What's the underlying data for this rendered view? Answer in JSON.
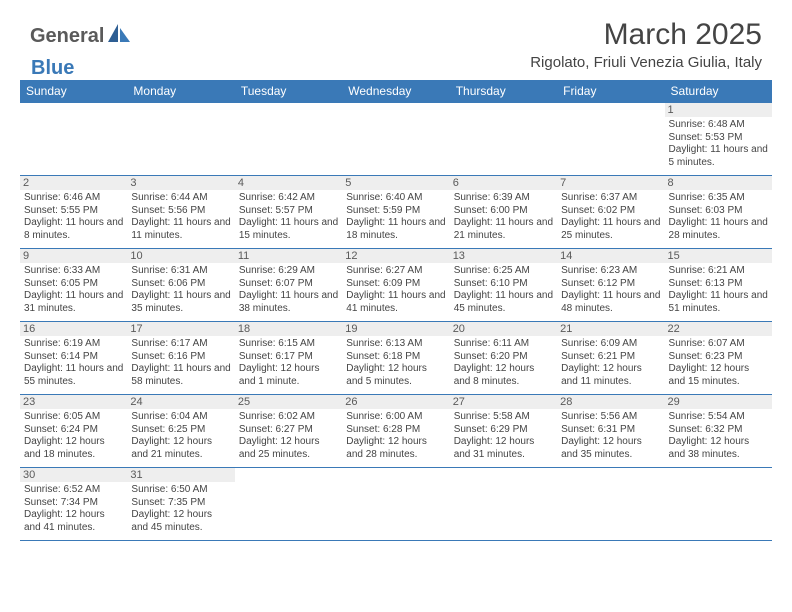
{
  "brand": {
    "part1": "General",
    "part2": "Blue"
  },
  "title": "March 2025",
  "location": "Rigolato, Friuli Venezia Giulia, Italy",
  "calendar": {
    "header_bg": "#3a79b7",
    "header_fg": "#ffffff",
    "border_color": "#3a79b7",
    "daynum_bg": "#eeeeee",
    "columns": [
      "Sunday",
      "Monday",
      "Tuesday",
      "Wednesday",
      "Thursday",
      "Friday",
      "Saturday"
    ],
    "weeks": [
      [
        null,
        null,
        null,
        null,
        null,
        null,
        {
          "n": "1",
          "sunrise": "Sunrise: 6:48 AM",
          "sunset": "Sunset: 5:53 PM",
          "daylight": "Daylight: 11 hours and 5 minutes."
        }
      ],
      [
        {
          "n": "2",
          "sunrise": "Sunrise: 6:46 AM",
          "sunset": "Sunset: 5:55 PM",
          "daylight": "Daylight: 11 hours and 8 minutes."
        },
        {
          "n": "3",
          "sunrise": "Sunrise: 6:44 AM",
          "sunset": "Sunset: 5:56 PM",
          "daylight": "Daylight: 11 hours and 11 minutes."
        },
        {
          "n": "4",
          "sunrise": "Sunrise: 6:42 AM",
          "sunset": "Sunset: 5:57 PM",
          "daylight": "Daylight: 11 hours and 15 minutes."
        },
        {
          "n": "5",
          "sunrise": "Sunrise: 6:40 AM",
          "sunset": "Sunset: 5:59 PM",
          "daylight": "Daylight: 11 hours and 18 minutes."
        },
        {
          "n": "6",
          "sunrise": "Sunrise: 6:39 AM",
          "sunset": "Sunset: 6:00 PM",
          "daylight": "Daylight: 11 hours and 21 minutes."
        },
        {
          "n": "7",
          "sunrise": "Sunrise: 6:37 AM",
          "sunset": "Sunset: 6:02 PM",
          "daylight": "Daylight: 11 hours and 25 minutes."
        },
        {
          "n": "8",
          "sunrise": "Sunrise: 6:35 AM",
          "sunset": "Sunset: 6:03 PM",
          "daylight": "Daylight: 11 hours and 28 minutes."
        }
      ],
      [
        {
          "n": "9",
          "sunrise": "Sunrise: 6:33 AM",
          "sunset": "Sunset: 6:05 PM",
          "daylight": "Daylight: 11 hours and 31 minutes."
        },
        {
          "n": "10",
          "sunrise": "Sunrise: 6:31 AM",
          "sunset": "Sunset: 6:06 PM",
          "daylight": "Daylight: 11 hours and 35 minutes."
        },
        {
          "n": "11",
          "sunrise": "Sunrise: 6:29 AM",
          "sunset": "Sunset: 6:07 PM",
          "daylight": "Daylight: 11 hours and 38 minutes."
        },
        {
          "n": "12",
          "sunrise": "Sunrise: 6:27 AM",
          "sunset": "Sunset: 6:09 PM",
          "daylight": "Daylight: 11 hours and 41 minutes."
        },
        {
          "n": "13",
          "sunrise": "Sunrise: 6:25 AM",
          "sunset": "Sunset: 6:10 PM",
          "daylight": "Daylight: 11 hours and 45 minutes."
        },
        {
          "n": "14",
          "sunrise": "Sunrise: 6:23 AM",
          "sunset": "Sunset: 6:12 PM",
          "daylight": "Daylight: 11 hours and 48 minutes."
        },
        {
          "n": "15",
          "sunrise": "Sunrise: 6:21 AM",
          "sunset": "Sunset: 6:13 PM",
          "daylight": "Daylight: 11 hours and 51 minutes."
        }
      ],
      [
        {
          "n": "16",
          "sunrise": "Sunrise: 6:19 AM",
          "sunset": "Sunset: 6:14 PM",
          "daylight": "Daylight: 11 hours and 55 minutes."
        },
        {
          "n": "17",
          "sunrise": "Sunrise: 6:17 AM",
          "sunset": "Sunset: 6:16 PM",
          "daylight": "Daylight: 11 hours and 58 minutes."
        },
        {
          "n": "18",
          "sunrise": "Sunrise: 6:15 AM",
          "sunset": "Sunset: 6:17 PM",
          "daylight": "Daylight: 12 hours and 1 minute."
        },
        {
          "n": "19",
          "sunrise": "Sunrise: 6:13 AM",
          "sunset": "Sunset: 6:18 PM",
          "daylight": "Daylight: 12 hours and 5 minutes."
        },
        {
          "n": "20",
          "sunrise": "Sunrise: 6:11 AM",
          "sunset": "Sunset: 6:20 PM",
          "daylight": "Daylight: 12 hours and 8 minutes."
        },
        {
          "n": "21",
          "sunrise": "Sunrise: 6:09 AM",
          "sunset": "Sunset: 6:21 PM",
          "daylight": "Daylight: 12 hours and 11 minutes."
        },
        {
          "n": "22",
          "sunrise": "Sunrise: 6:07 AM",
          "sunset": "Sunset: 6:23 PM",
          "daylight": "Daylight: 12 hours and 15 minutes."
        }
      ],
      [
        {
          "n": "23",
          "sunrise": "Sunrise: 6:05 AM",
          "sunset": "Sunset: 6:24 PM",
          "daylight": "Daylight: 12 hours and 18 minutes."
        },
        {
          "n": "24",
          "sunrise": "Sunrise: 6:04 AM",
          "sunset": "Sunset: 6:25 PM",
          "daylight": "Daylight: 12 hours and 21 minutes."
        },
        {
          "n": "25",
          "sunrise": "Sunrise: 6:02 AM",
          "sunset": "Sunset: 6:27 PM",
          "daylight": "Daylight: 12 hours and 25 minutes."
        },
        {
          "n": "26",
          "sunrise": "Sunrise: 6:00 AM",
          "sunset": "Sunset: 6:28 PM",
          "daylight": "Daylight: 12 hours and 28 minutes."
        },
        {
          "n": "27",
          "sunrise": "Sunrise: 5:58 AM",
          "sunset": "Sunset: 6:29 PM",
          "daylight": "Daylight: 12 hours and 31 minutes."
        },
        {
          "n": "28",
          "sunrise": "Sunrise: 5:56 AM",
          "sunset": "Sunset: 6:31 PM",
          "daylight": "Daylight: 12 hours and 35 minutes."
        },
        {
          "n": "29",
          "sunrise": "Sunrise: 5:54 AM",
          "sunset": "Sunset: 6:32 PM",
          "daylight": "Daylight: 12 hours and 38 minutes."
        }
      ],
      [
        {
          "n": "30",
          "sunrise": "Sunrise: 6:52 AM",
          "sunset": "Sunset: 7:34 PM",
          "daylight": "Daylight: 12 hours and 41 minutes."
        },
        {
          "n": "31",
          "sunrise": "Sunrise: 6:50 AM",
          "sunset": "Sunset: 7:35 PM",
          "daylight": "Daylight: 12 hours and 45 minutes."
        },
        null,
        null,
        null,
        null,
        null
      ]
    ]
  }
}
